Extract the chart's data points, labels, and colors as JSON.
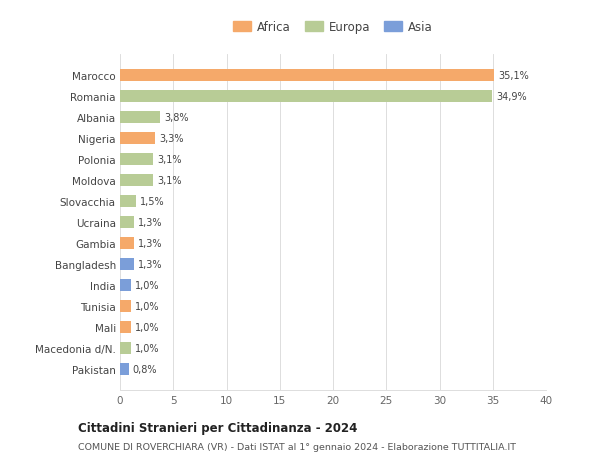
{
  "countries": [
    "Marocco",
    "Romania",
    "Albania",
    "Nigeria",
    "Polonia",
    "Moldova",
    "Slovacchia",
    "Ucraina",
    "Gambia",
    "Bangladesh",
    "India",
    "Tunisia",
    "Mali",
    "Macedonia d/N.",
    "Pakistan"
  ],
  "values": [
    35.1,
    34.9,
    3.8,
    3.3,
    3.1,
    3.1,
    1.5,
    1.3,
    1.3,
    1.3,
    1.0,
    1.0,
    1.0,
    1.0,
    0.8
  ],
  "labels": [
    "35,1%",
    "34,9%",
    "3,8%",
    "3,3%",
    "3,1%",
    "3,1%",
    "1,5%",
    "1,3%",
    "1,3%",
    "1,3%",
    "1,0%",
    "1,0%",
    "1,0%",
    "1,0%",
    "0,8%"
  ],
  "continents": [
    "Africa",
    "Europa",
    "Europa",
    "Africa",
    "Europa",
    "Europa",
    "Europa",
    "Europa",
    "Africa",
    "Asia",
    "Asia",
    "Africa",
    "Africa",
    "Europa",
    "Asia"
  ],
  "colors": {
    "Africa": "#F5A96A",
    "Europa": "#B8CC96",
    "Asia": "#7B9ED9"
  },
  "title1": "Cittadini Stranieri per Cittadinanza - 2024",
  "title2": "COMUNE DI ROVERCHIARA (VR) - Dati ISTAT al 1° gennaio 2024 - Elaborazione TUTTITALIA.IT",
  "xlim": [
    0,
    40
  ],
  "xticks": [
    0,
    5,
    10,
    15,
    20,
    25,
    30,
    35,
    40
  ],
  "background_color": "#ffffff",
  "grid_color": "#d8d8d8"
}
